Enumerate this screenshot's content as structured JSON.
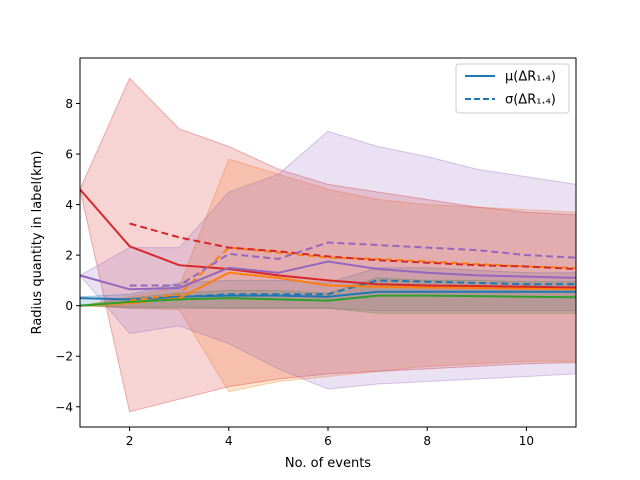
{
  "chart_data": {
    "type": "line",
    "title": "",
    "xlabel": "No. of events",
    "ylabel": "Radius quantity in label(km)",
    "xlim": [
      1,
      11
    ],
    "ylim": [
      -4.8,
      9.8
    ],
    "xticks": [
      2,
      4,
      6,
      8,
      10
    ],
    "xtick_labels": [
      "2",
      "4",
      "6",
      "8",
      "10"
    ],
    "yticks": [
      -4,
      -2,
      0,
      2,
      4,
      6,
      8
    ],
    "ytick_labels": [
      "−4",
      "−2",
      "0",
      "2",
      "4",
      "6",
      "8"
    ],
    "grid": false,
    "legend": {
      "position": "top-right",
      "entries": [
        {
          "label": "μ(ΔR₁.₄)",
          "style": "solid",
          "color": "#1f77b4"
        },
        {
          "label": "σ(ΔR₁.₄)",
          "style": "dashed",
          "color": "#1f77b4"
        }
      ]
    },
    "series": [
      {
        "name": "blue",
        "color": "#1f77b4",
        "x": [
          1,
          2,
          3,
          4,
          5,
          6,
          7,
          8,
          9,
          10,
          11
        ],
        "mu": [
          0.3,
          0.25,
          0.35,
          0.4,
          0.4,
          0.35,
          0.55,
          0.55,
          0.55,
          0.55,
          0.55
        ],
        "sigma_x": [
          2,
          3,
          4,
          5,
          6,
          7,
          8,
          9,
          10,
          11
        ],
        "sigma": [
          0.1,
          0.35,
          0.45,
          0.45,
          0.45,
          1.0,
          0.95,
          0.9,
          0.85,
          0.85
        ],
        "band_x": [
          1,
          2,
          3,
          4,
          5,
          6,
          7,
          8,
          9,
          10,
          11
        ],
        "band_low": [
          0.05,
          -0.1,
          -0.1,
          -0.1,
          -0.1,
          -0.1,
          -0.2,
          -0.2,
          -0.2,
          -0.2,
          -0.2
        ],
        "band_high": [
          0.35,
          0.45,
          0.9,
          1.0,
          1.0,
          0.9,
          1.5,
          1.5,
          1.4,
          1.3,
          1.3
        ]
      },
      {
        "name": "orange",
        "color": "#ff7f0e",
        "x": [
          1,
          2,
          3,
          4,
          5,
          6,
          7,
          8,
          9,
          10,
          11
        ],
        "mu": [
          0.0,
          0.1,
          0.3,
          1.3,
          1.1,
          0.8,
          0.75,
          0.72,
          0.7,
          0.68,
          0.65
        ],
        "sigma_x": [
          2,
          3,
          4,
          5,
          6,
          7,
          8,
          9,
          10,
          11
        ],
        "sigma": [
          0.2,
          0.45,
          2.3,
          2.1,
          1.9,
          1.85,
          1.75,
          1.65,
          1.55,
          1.5
        ],
        "band_x": [
          1,
          2,
          3,
          4,
          5,
          6,
          7,
          8,
          9,
          10,
          11
        ],
        "band_low": [
          0.0,
          -0.1,
          -0.15,
          -3.4,
          -3.0,
          -2.8,
          -2.6,
          -2.4,
          -2.3,
          -2.2,
          -2.2
        ],
        "band_high": [
          0.0,
          0.35,
          0.75,
          5.8,
          5.2,
          4.6,
          4.2,
          4.0,
          3.9,
          3.8,
          3.7
        ]
      },
      {
        "name": "green",
        "color": "#2ca02c",
        "x": [
          1,
          2,
          3,
          4,
          5,
          6,
          7,
          8,
          9,
          10,
          11
        ],
        "mu": [
          0.0,
          0.15,
          0.25,
          0.3,
          0.25,
          0.2,
          0.4,
          0.4,
          0.38,
          0.35,
          0.33
        ],
        "sigma_x": [],
        "sigma": [],
        "band_x": [
          1,
          2,
          3,
          4,
          5,
          6,
          7,
          8,
          9,
          10,
          11
        ],
        "band_low": [
          0.0,
          -0.05,
          -0.05,
          -0.1,
          -0.1,
          -0.1,
          -0.3,
          -0.3,
          -0.3,
          -0.3,
          -0.3
        ],
        "band_high": [
          0.0,
          0.3,
          0.5,
          0.6,
          0.6,
          0.5,
          1.1,
          1.0,
          1.0,
          0.95,
          0.95
        ]
      },
      {
        "name": "red",
        "color": "#d62728",
        "x": [
          1,
          2,
          3,
          4,
          5,
          6,
          7,
          8,
          9,
          10,
          11
        ],
        "mu": [
          4.6,
          2.35,
          1.6,
          1.45,
          1.2,
          1.0,
          0.85,
          0.8,
          0.78,
          0.75,
          0.72
        ],
        "sigma_x": [
          2,
          3,
          4,
          5,
          6,
          7,
          8,
          9,
          10,
          11
        ],
        "sigma": [
          3.25,
          2.7,
          2.3,
          2.15,
          1.95,
          1.8,
          1.7,
          1.6,
          1.55,
          1.45
        ],
        "band_x": [
          1,
          2,
          3,
          4,
          5,
          6,
          7,
          8,
          9,
          10,
          11
        ],
        "band_low": [
          4.6,
          -4.2,
          -3.7,
          -3.2,
          -2.9,
          -2.7,
          -2.6,
          -2.5,
          -2.4,
          -2.3,
          -2.25
        ],
        "band_high": [
          4.6,
          9.0,
          7.0,
          6.3,
          5.4,
          4.8,
          4.5,
          4.2,
          3.9,
          3.7,
          3.6
        ]
      },
      {
        "name": "purple",
        "color": "#9467bd",
        "x": [
          1,
          2,
          3,
          4,
          5,
          6,
          7,
          8,
          9,
          10,
          11
        ],
        "mu": [
          1.2,
          0.65,
          0.7,
          1.5,
          1.3,
          1.75,
          1.45,
          1.3,
          1.2,
          1.15,
          1.1
        ],
        "sigma_x": [
          2,
          3,
          4,
          5,
          6,
          7,
          8,
          9,
          10,
          11
        ],
        "sigma": [
          0.8,
          0.8,
          2.05,
          1.85,
          2.5,
          2.4,
          2.3,
          2.2,
          2.0,
          1.9
        ],
        "band_x": [
          1,
          2,
          3,
          4,
          5,
          6,
          7,
          8,
          9,
          10,
          11
        ],
        "band_low": [
          1.2,
          -1.1,
          -0.8,
          -1.5,
          -2.5,
          -3.3,
          -3.1,
          -3.0,
          -2.9,
          -2.8,
          -2.7
        ],
        "band_high": [
          1.2,
          2.3,
          2.3,
          4.5,
          5.2,
          6.9,
          6.3,
          5.9,
          5.4,
          5.1,
          4.8
        ]
      }
    ]
  }
}
